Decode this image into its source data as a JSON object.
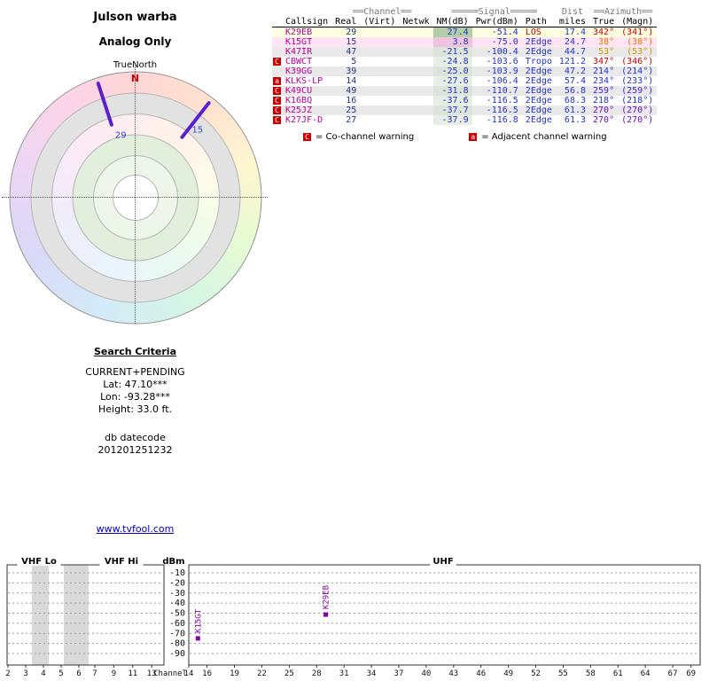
{
  "page": {
    "title": "Julson warba",
    "subtitle": "Analog Only"
  },
  "table": {
    "group_headers": {
      "channel": "══Channel══",
      "signal": "═════Signal═════",
      "dist": "Dist",
      "azimuth": "══Azimuth══"
    },
    "columns": {
      "callsign": "Callsign",
      "real": "Real",
      "virt": "(Virt)",
      "netwk": "Netwk",
      "nm": "NM(dB)",
      "pwr": "Pwr(dBm)",
      "path": "Path",
      "miles": "miles",
      "true_az": "True",
      "magn": "(Magn)"
    },
    "colors": {
      "callsign": "#bb0099",
      "channel": "#223388",
      "value": "#2233cc"
    },
    "rows": [
      {
        "warn": "",
        "callsign": "K29EB",
        "real": "29",
        "virt": "",
        "netwk": "",
        "nm": "27.4",
        "pwr": "-51.4",
        "path": "LOS",
        "miles": "17.4",
        "true_az": "342°",
        "magn": "(341°)",
        "path_color": "#cc0000",
        "az_color": "#cc0000",
        "row_bg": "#fbffdf",
        "nm_bg": "#b3cda6"
      },
      {
        "warn": "",
        "callsign": "K15GT",
        "real": "15",
        "virt": "",
        "netwk": "",
        "nm": "3.8",
        "pwr": "-75.0",
        "path": "2Edge",
        "miles": "24.7",
        "true_az": "38°",
        "magn": "(38°)",
        "path_color": "#2233cc",
        "az_color": "#ee7700",
        "row_bg": "#ffe4f4",
        "nm_bg": "#eec3dd"
      },
      {
        "warn": "",
        "callsign": "K47IR",
        "real": "47",
        "virt": "",
        "netwk": "",
        "nm": "-21.5",
        "pwr": "-100.4",
        "path": "2Edge",
        "miles": "44.7",
        "true_az": "53°",
        "magn": "(53°)",
        "path_color": "#2233cc",
        "az_color": "#d49600",
        "row_bg": "#e9e9e9",
        "nm_bg": "#dde4da"
      },
      {
        "warn": "C",
        "callsign": "CBWCT",
        "real": "5",
        "virt": "",
        "netwk": "",
        "nm": "-24.8",
        "pwr": "-103.6",
        "path": "Tropo",
        "miles": "121.2",
        "true_az": "347°",
        "magn": "(346°)",
        "path_color": "#2233cc",
        "az_color": "#cc0000",
        "row_bg": "#ffffff",
        "nm_bg": "#e8eee5"
      },
      {
        "warn": "",
        "callsign": "K39GG",
        "real": "39",
        "virt": "",
        "netwk": "",
        "nm": "-25.0",
        "pwr": "-103.9",
        "path": "2Edge",
        "miles": "47.2",
        "true_az": "214°",
        "magn": "(214°)",
        "path_color": "#2233cc",
        "az_color": "#2233cc",
        "row_bg": "#e9e9e9",
        "nm_bg": "#dde4da"
      },
      {
        "warn": "a",
        "callsign": "KLKS-LP",
        "real": "14",
        "virt": "",
        "netwk": "",
        "nm": "-27.6",
        "pwr": "-106.4",
        "path": "2Edge",
        "miles": "57.4",
        "true_az": "234°",
        "magn": "(233°)",
        "path_color": "#2233cc",
        "az_color": "#2233cc",
        "row_bg": "#ffffff",
        "nm_bg": "#e8eee5"
      },
      {
        "warn": "C",
        "callsign": "K49CU",
        "real": "49",
        "virt": "",
        "netwk": "",
        "nm": "-31.8",
        "pwr": "-110.7",
        "path": "2Edge",
        "miles": "56.8",
        "true_az": "259°",
        "magn": "(259°)",
        "path_color": "#2233cc",
        "az_color": "#4422cc",
        "row_bg": "#e9e9e9",
        "nm_bg": "#dde4da"
      },
      {
        "warn": "C",
        "callsign": "K16BQ",
        "real": "16",
        "virt": "",
        "netwk": "",
        "nm": "-37.6",
        "pwr": "-116.5",
        "path": "2Edge",
        "miles": "68.3",
        "true_az": "218°",
        "magn": "(218°)",
        "path_color": "#2233cc",
        "az_color": "#2233cc",
        "row_bg": "#ffffff",
        "nm_bg": "#e8eee5"
      },
      {
        "warn": "C",
        "callsign": "K25JZ",
        "real": "25",
        "virt": "",
        "netwk": "",
        "nm": "-37.7",
        "pwr": "-116.5",
        "path": "2Edge",
        "miles": "61.3",
        "true_az": "270°",
        "magn": "(270°)",
        "path_color": "#2233cc",
        "az_color": "#6611bb",
        "row_bg": "#e9e9e9",
        "nm_bg": "#dde4da"
      },
      {
        "warn": "C",
        "callsign": "K27JF-D",
        "real": "27",
        "virt": "",
        "netwk": "",
        "nm": "-37.9",
        "pwr": "-116.8",
        "path": "2Edge",
        "miles": "61.3",
        "true_az": "270°",
        "magn": "(270°)",
        "path_color": "#2233cc",
        "az_color": "#6611bb",
        "row_bg": "#ffffff",
        "nm_bg": "#e8eee5"
      }
    ]
  },
  "legend": {
    "co_symbol": "C",
    "co_text": "= Co-channel warning",
    "adj_symbol": "a",
    "adj_text": "= Adjacent channel warning",
    "warn_color": "#cc0000"
  },
  "search": {
    "heading": "Search Criteria",
    "mode": "CURRENT+PENDING",
    "lat": "Lat: 47.10***",
    "lon": "Lon: -93.28***",
    "height": "Height: 33.0 ft.",
    "db_label": "db datecode",
    "db_code": "201201251232"
  },
  "link": {
    "text": "www.tvfool.com"
  },
  "chart_data": [
    {
      "type": "polar",
      "title": "Julson warba",
      "subtitle": "Analog Only",
      "orientation_label": "TrueNorth",
      "north_marker": "N",
      "marker_color": "#5b21c8",
      "label_color": "#3344cc",
      "points": [
        {
          "label": "29",
          "azimuth_deg": 342
        },
        {
          "label": "15",
          "azimuth_deg": 38
        }
      ]
    },
    {
      "type": "scatter",
      "xlabel": "Channel",
      "ylabel": "dBm",
      "ylim": [
        -95,
        -5
      ],
      "y_ticks": [
        -10,
        -20,
        -30,
        -40,
        -50,
        -60,
        -70,
        -80,
        -90
      ],
      "sections": [
        "VHF Lo",
        "VHF Hi",
        "UHF"
      ],
      "vhf_channel_ticks": [
        2,
        3,
        4,
        5,
        6,
        7,
        9,
        11,
        13
      ],
      "uhf_channel_ticks": [
        14,
        16,
        19,
        22,
        25,
        28,
        31,
        34,
        37,
        40,
        43,
        46,
        49,
        52,
        55,
        58,
        61,
        64,
        67,
        69
      ],
      "uhf_channel_range": [
        14,
        69
      ],
      "gray_bands": [
        [
          3.35,
          4.3
        ],
        [
          5.15,
          6.55
        ]
      ],
      "grid": true,
      "marker_color": "#8800aa",
      "points": [
        {
          "label": "K15GT",
          "x": 15,
          "y": -75.0
        },
        {
          "label": "K29EB",
          "x": 29,
          "y": -51.4
        }
      ]
    }
  ]
}
